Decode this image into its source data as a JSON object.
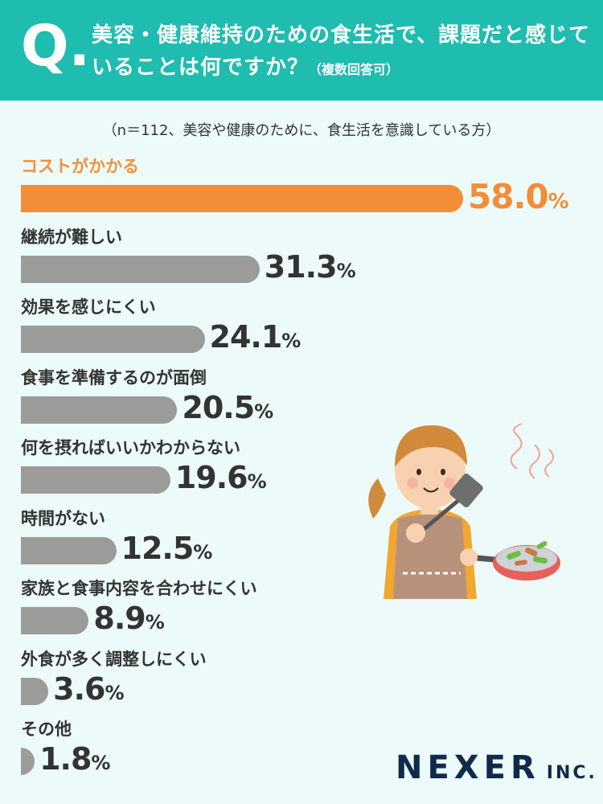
{
  "header": {
    "q_mark": "Q.",
    "question": "美容・健康維持のための食生活で、課題だと感じていることは何ですか？",
    "note": "（複数回答可）"
  },
  "subtitle": "（n＝112、美容や健康のために、食生活を意識している方）",
  "chart_data": {
    "type": "bar",
    "orientation": "horizontal",
    "categories": [
      "コストがかかる",
      "継続が難しい",
      "効果を感じにくい",
      "食事を準備するのが面倒",
      "何を摂ればいいかわからない",
      "時間がない",
      "家族と食事内容を合わせにくい",
      "外食が多く調整しにくい",
      "その他"
    ],
    "values": [
      58.0,
      31.3,
      24.1,
      20.5,
      19.6,
      12.5,
      8.9,
      3.6,
      1.8
    ],
    "value_labels": [
      "58.0",
      "31.3",
      "24.1",
      "20.5",
      "19.6",
      "12.5",
      "8.9",
      "3.6",
      "1.8"
    ],
    "unit": "%",
    "highlight_index": 0,
    "colors": {
      "highlight": "#f28e37",
      "default": "#9b9b9b"
    }
  },
  "colors": {
    "header_bg": "#1fbcb0",
    "page_bg": "#ecfaf9"
  },
  "logo": {
    "name": "NEXER",
    "suffix": "INC."
  }
}
